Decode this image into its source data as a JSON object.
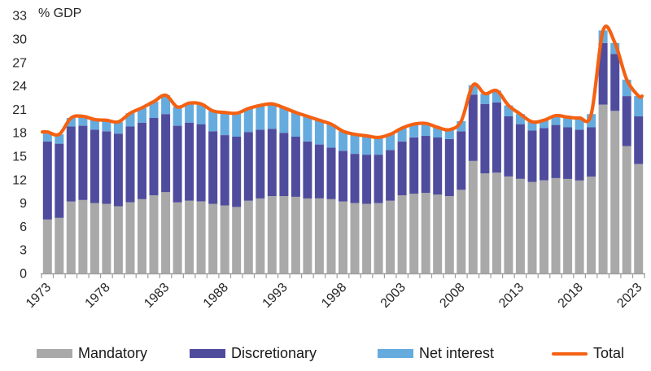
{
  "chart_data": {
    "type": "bar",
    "subtype": "stacked-bars-with-total-line",
    "title": "",
    "ylabel": "% GDP",
    "xlabel": "",
    "ylim": [
      0,
      33
    ],
    "y_ticks": [
      0,
      3,
      6,
      9,
      12,
      15,
      18,
      21,
      24,
      27,
      30,
      33
    ],
    "x_tick_labels": [
      "1973",
      "1978",
      "1983",
      "1988",
      "1993",
      "1998",
      "2003",
      "2008",
      "2013",
      "2018",
      "2023"
    ],
    "x_tick_step": 5,
    "grid": "off",
    "legend_position": "bottom",
    "years": [
      1973,
      1974,
      1975,
      1976,
      1977,
      1978,
      1979,
      1980,
      1981,
      1982,
      1983,
      1984,
      1985,
      1986,
      1987,
      1988,
      1989,
      1990,
      1991,
      1992,
      1993,
      1994,
      1995,
      1996,
      1997,
      1998,
      1999,
      2000,
      2001,
      2002,
      2003,
      2004,
      2005,
      2006,
      2007,
      2008,
      2009,
      2010,
      2011,
      2012,
      2013,
      2014,
      2015,
      2016,
      2017,
      2018,
      2019,
      2020,
      2021,
      2022,
      2023
    ],
    "series": [
      {
        "name": "Mandatory",
        "type": "bar",
        "color": "#a9a9a9",
        "values": [
          6.9,
          7.1,
          9.2,
          9.4,
          9.0,
          8.9,
          8.6,
          9.1,
          9.5,
          10.0,
          10.4,
          9.1,
          9.3,
          9.2,
          8.9,
          8.7,
          8.5,
          9.3,
          9.6,
          9.9,
          9.9,
          9.8,
          9.6,
          9.6,
          9.5,
          9.2,
          9.0,
          8.9,
          9.0,
          9.3,
          10.0,
          10.2,
          10.3,
          10.1,
          9.9,
          10.7,
          14.4,
          12.8,
          12.9,
          12.4,
          12.1,
          11.7,
          11.9,
          12.2,
          12.1,
          11.9,
          12.4,
          21.6,
          20.8,
          16.3,
          14.0
        ]
      },
      {
        "name": "Discretionary",
        "type": "bar",
        "color": "#4f4c9e",
        "values": [
          10.0,
          9.5,
          9.6,
          9.5,
          9.4,
          9.3,
          9.3,
          9.7,
          9.8,
          9.9,
          10.0,
          9.8,
          10.0,
          9.9,
          9.3,
          9.0,
          9.0,
          8.8,
          8.8,
          8.6,
          8.1,
          7.7,
          7.3,
          6.9,
          6.6,
          6.5,
          6.3,
          6.3,
          6.2,
          6.5,
          6.9,
          7.2,
          7.3,
          7.3,
          7.3,
          7.5,
          8.5,
          8.9,
          9.0,
          7.7,
          7.0,
          6.6,
          6.7,
          6.8,
          6.6,
          6.5,
          6.3,
          7.9,
          7.3,
          6.4,
          6.1
        ]
      },
      {
        "name": "Net interest",
        "type": "bar",
        "color": "#66abde",
        "values": [
          1.2,
          1.2,
          1.1,
          1.2,
          1.3,
          1.4,
          1.5,
          1.7,
          1.9,
          2.1,
          2.4,
          2.4,
          2.5,
          2.6,
          2.6,
          2.9,
          3.0,
          3.0,
          3.1,
          3.2,
          3.2,
          3.1,
          3.2,
          3.1,
          3.0,
          2.5,
          2.5,
          2.4,
          2.2,
          2.0,
          1.7,
          1.7,
          1.6,
          1.3,
          1.2,
          1.3,
          1.2,
          1.3,
          1.5,
          1.4,
          1.3,
          1.1,
          1.0,
          1.2,
          1.3,
          1.5,
          1.7,
          1.6,
          1.4,
          2.1,
          2.6
        ]
      },
      {
        "name": "Total",
        "type": "line",
        "color": "#f46112",
        "values": [
          18.1,
          17.8,
          19.9,
          20.1,
          19.7,
          19.6,
          19.4,
          20.5,
          21.2,
          22.0,
          22.8,
          21.3,
          21.8,
          21.7,
          20.8,
          20.6,
          20.5,
          21.1,
          21.5,
          21.7,
          21.2,
          20.6,
          20.1,
          19.6,
          19.1,
          18.2,
          17.8,
          17.6,
          17.4,
          17.8,
          18.6,
          19.1,
          19.2,
          18.7,
          18.4,
          19.5,
          24.1,
          23.0,
          23.4,
          21.5,
          20.4,
          19.4,
          19.6,
          20.2,
          20.0,
          19.9,
          20.4,
          31.1,
          29.5,
          24.8,
          22.7
        ]
      }
    ],
    "axis_color": "#9f9f9f",
    "text_color": "#262626"
  }
}
